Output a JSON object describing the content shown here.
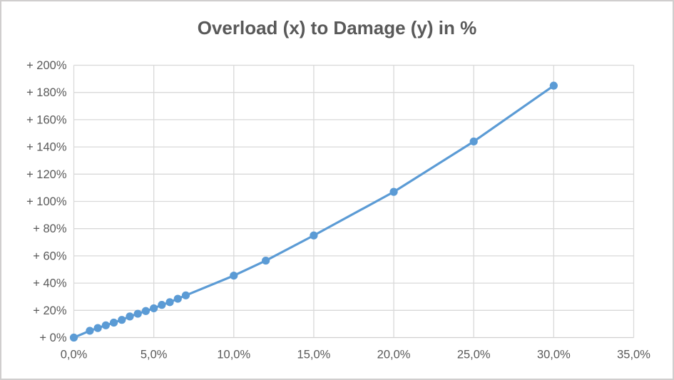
{
  "chart_data": {
    "type": "line",
    "title": "Overload (x) to Damage (y) in %",
    "xlabel": "",
    "ylabel": "",
    "grid": true,
    "legend": false,
    "marker_style": "circle",
    "series": [
      {
        "name": "Damage vs Overload",
        "x": [
          0,
          1,
          1.5,
          2,
          2.5,
          3,
          3.5,
          4,
          4.5,
          5,
          5.5,
          6,
          6.5,
          7,
          10,
          12,
          15,
          20,
          25,
          30
        ],
        "y": [
          0,
          5,
          7,
          9,
          11,
          13,
          15.5,
          17.5,
          19.5,
          21.5,
          24,
          26,
          28.5,
          31,
          45.5,
          56.5,
          75,
          107,
          144,
          185
        ]
      }
    ],
    "x_axis": {
      "min": 0,
      "max": 35,
      "tick_values": [
        0,
        5,
        10,
        15,
        20,
        25,
        30,
        35
      ],
      "tick_labels": [
        "0,0%",
        "5,0%",
        "10,0%",
        "15,0%",
        "20,0%",
        "25,0%",
        "30,0%",
        "35,0%"
      ]
    },
    "y_axis": {
      "min": 0,
      "max": 200,
      "tick_values": [
        0,
        20,
        40,
        60,
        80,
        100,
        120,
        140,
        160,
        180,
        200
      ],
      "tick_labels": [
        "+ 0%",
        "+ 20%",
        "+ 40%",
        "+ 60%",
        "+ 80%",
        "+ 100%",
        "+ 120%",
        "+ 140%",
        "+ 160%",
        "+ 180%",
        "+ 200%"
      ]
    },
    "colors": {
      "line": "#5b9bd5",
      "marker": "#5b9bd5",
      "grid": "#d9d9d9",
      "axis_line": "#d0cece",
      "tick_text": "#595959",
      "title_text": "#595959",
      "background": "#ffffff",
      "frame_border": "#d0cece"
    }
  }
}
